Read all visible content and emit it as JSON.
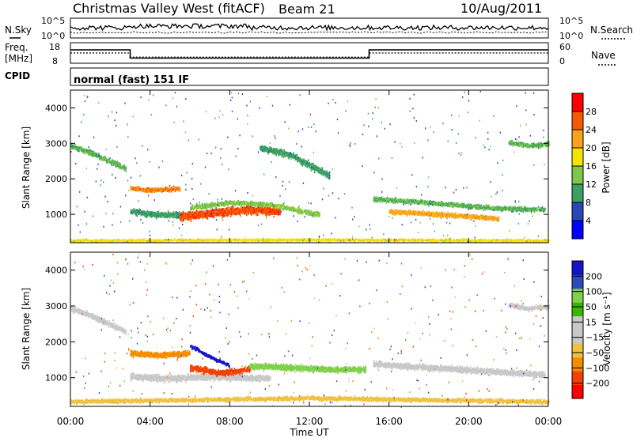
{
  "header": {
    "title": "Christmas Valley West (fitACF)",
    "beam": "Beam 21",
    "date": "10/Aug/2011"
  },
  "strips": {
    "nsky_label": "N.Sky",
    "nsky_ticks": [
      "10^5",
      "10^0"
    ],
    "nsearch_label": "N.Search",
    "freq_label_1": "Freq.",
    "freq_label_2": "[MHz]",
    "freq_ticks": [
      "18",
      "8"
    ],
    "nave_label": "Nave",
    "nave_ticks": [
      "60",
      "0"
    ],
    "cpid_label": "CPID",
    "cpid_text": "normal (fast) 151 IF",
    "freq_profile": {
      "x_hours": [
        0,
        3,
        3,
        15,
        15,
        24
      ],
      "mhz": [
        14.5,
        14.5,
        10.5,
        10.5,
        14.5,
        14.5
      ]
    },
    "nave_profile": {
      "x_hours": [
        0,
        3,
        3,
        15,
        15,
        24
      ],
      "nave": [
        30,
        30,
        18,
        18,
        30,
        30
      ]
    }
  },
  "colors": {
    "power_scale": [
      "#0000ff",
      "#2a47b8",
      "#39a061",
      "#7fc74a",
      "#f6e400",
      "#f9a21a",
      "#f45a00",
      "#ff0000"
    ],
    "velocity_scale": [
      "#ff0000",
      "#f44000",
      "#f48c00",
      "#f0c040",
      "#c8c8c8",
      "#c8c8c8",
      "#3ab400",
      "#7fd04a",
      "#2a4cb5",
      "#1414c8"
    ],
    "ground": "#c8c8c8"
  },
  "chart_data": [
    {
      "type": "heatmap",
      "title": "",
      "xlabel": "",
      "ylabel": "Slant Range [km]",
      "xlim": [
        0,
        24
      ],
      "ylim": [
        200,
        4500
      ],
      "y_ticks": [
        1000,
        2000,
        3000,
        4000
      ],
      "colorbar": {
        "label": "Power [dB]",
        "ticks": [
          4,
          8,
          12,
          16,
          20,
          24,
          28
        ],
        "range": [
          0,
          32
        ]
      },
      "bands": [
        {
          "x_hours": [
            0,
            1,
            2,
            2.8
          ],
          "range_km": [
            2950,
            2750,
            2500,
            2300
          ],
          "width_km": 180,
          "value": 12
        },
        {
          "x_hours": [
            3,
            4,
            5.5
          ],
          "range_km": [
            1750,
            1700,
            1750
          ],
          "width_km": 150,
          "value": 24
        },
        {
          "x_hours": [
            3,
            4.5,
            6
          ],
          "range_km": [
            1100,
            1000,
            1000
          ],
          "width_km": 200,
          "value": 10
        },
        {
          "x_hours": [
            5.5,
            7,
            9,
            10.5
          ],
          "range_km": [
            950,
            1050,
            1150,
            1100
          ],
          "width_km": 280,
          "value": 27
        },
        {
          "x_hours": [
            6,
            8,
            10,
            12.5
          ],
          "range_km": [
            1200,
            1350,
            1300,
            1000
          ],
          "width_km": 160,
          "value": 14
        },
        {
          "x_hours": [
            9.5,
            11,
            13
          ],
          "range_km": [
            2900,
            2700,
            2100
          ],
          "width_km": 220,
          "value": 10
        },
        {
          "x_hours": [
            15.2,
            18,
            21,
            23.8
          ],
          "range_km": [
            1450,
            1350,
            1200,
            1150
          ],
          "width_km": 160,
          "value": 12
        },
        {
          "x_hours": [
            16,
            19,
            21.5
          ],
          "range_km": [
            1100,
            1000,
            900
          ],
          "width_km": 160,
          "value": 22
        },
        {
          "x_hours": [
            22,
            23,
            24
          ],
          "range_km": [
            3050,
            2950,
            3000
          ],
          "width_km": 160,
          "value": 12
        },
        {
          "x_hours": [
            0,
            12,
            24
          ],
          "range_km": [
            280,
            300,
            280
          ],
          "width_km": 90,
          "value": 18
        }
      ]
    },
    {
      "type": "heatmap",
      "title": "",
      "xlabel": "Time UT",
      "ylabel": "Slant Range [km]",
      "xlim": [
        0,
        24
      ],
      "ylim": [
        200,
        4500
      ],
      "x_ticks": [
        "00:00",
        "04:00",
        "08:00",
        "12:00",
        "16:00",
        "20:00",
        "00:00"
      ],
      "y_ticks": [
        1000,
        2000,
        3000,
        4000
      ],
      "colorbar": {
        "label": "Velocity [m s⁻¹]",
        "ticks": [
          200,
          100,
          50,
          15,
          -15,
          -50,
          -100,
          -200
        ],
        "range": [
          -250,
          250
        ]
      },
      "bands": [
        {
          "x_hours": [
            0,
            1,
            2,
            2.8
          ],
          "range_km": [
            2950,
            2750,
            2500,
            2300
          ],
          "width_km": 180,
          "value": 0
        },
        {
          "x_hours": [
            3,
            4.5,
            6
          ],
          "range_km": [
            1700,
            1650,
            1700
          ],
          "width_km": 200,
          "value": -60
        },
        {
          "x_hours": [
            3,
            5,
            7,
            10
          ],
          "range_km": [
            1050,
            1000,
            1050,
            1000
          ],
          "width_km": 220,
          "value": 0
        },
        {
          "x_hours": [
            6,
            7.5,
            9
          ],
          "range_km": [
            1300,
            1150,
            1250
          ],
          "width_km": 200,
          "value": -120
        },
        {
          "x_hours": [
            9,
            11,
            13,
            14.8
          ],
          "range_km": [
            1350,
            1300,
            1250,
            1250
          ],
          "width_km": 200,
          "value": 60
        },
        {
          "x_hours": [
            15.2,
            18,
            21,
            23.8
          ],
          "range_km": [
            1400,
            1300,
            1200,
            1100
          ],
          "width_km": 200,
          "value": 0
        },
        {
          "x_hours": [
            6,
            7,
            8
          ],
          "range_km": [
            1900,
            1600,
            1350
          ],
          "width_km": 120,
          "value": 210
        },
        {
          "x_hours": [
            22,
            23,
            24
          ],
          "range_km": [
            3050,
            2950,
            3000
          ],
          "width_km": 160,
          "value": 0
        },
        {
          "x_hours": [
            0,
            12,
            24
          ],
          "range_km": [
            350,
            450,
            350
          ],
          "width_km": 140,
          "value": -40
        }
      ]
    }
  ]
}
